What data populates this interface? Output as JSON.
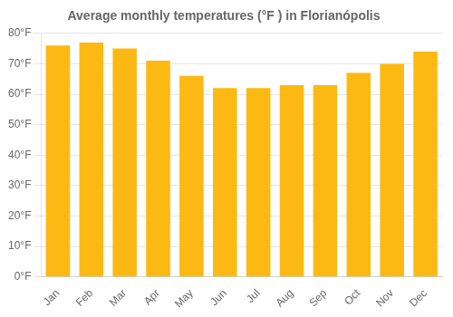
{
  "chart_data": {
    "type": "bar",
    "title": "Average monthly temperatures (°F ) in Florianópolis",
    "categories": [
      "Jan",
      "Feb",
      "Mar",
      "Apr",
      "May",
      "Jun",
      "Jul",
      "Aug",
      "Sep",
      "Oct",
      "Nov",
      "Dec"
    ],
    "values": [
      76,
      77,
      75,
      71,
      66,
      62,
      62,
      63,
      63,
      67,
      70,
      74
    ],
    "color": "#FDB913",
    "ylim": [
      0,
      80
    ],
    "yticks": [
      {
        "value": 0,
        "label": "0°F"
      },
      {
        "value": 10,
        "label": "10°F"
      },
      {
        "value": 20,
        "label": "20°F"
      },
      {
        "value": 30,
        "label": "30°F"
      },
      {
        "value": 40,
        "label": "40°F"
      },
      {
        "value": 50,
        "label": "50°F"
      },
      {
        "value": 60,
        "label": "60°F"
      },
      {
        "value": 70,
        "label": "70°F"
      },
      {
        "value": 80,
        "label": "80°F"
      }
    ],
    "grid": true
  }
}
